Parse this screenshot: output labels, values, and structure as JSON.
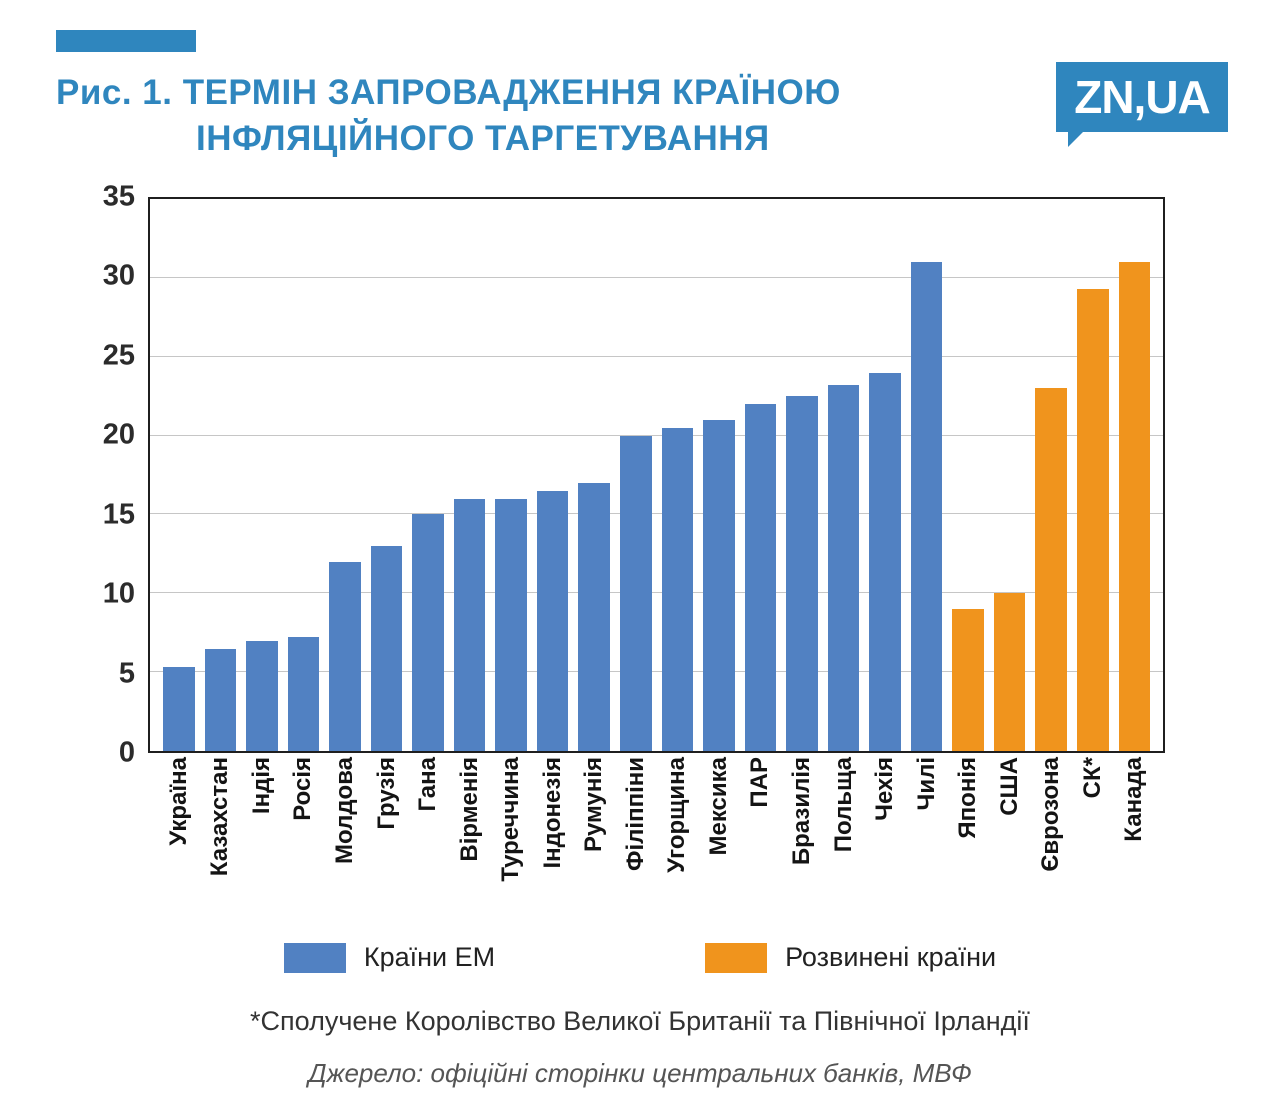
{
  "header": {
    "figure_label": "Рис. 1.",
    "title_line1": "ТЕРМІН ЗАПРОВАДЖЕННЯ КРАЇНОЮ",
    "title_line2": "ІНФЛЯЦІЙНОГО ТАРГЕТУВАННЯ",
    "logo_text": "ZN,UA",
    "accent_color": "#2f86be"
  },
  "chart_data": {
    "type": "bar",
    "title": "Термін запровадження країною інфляційного таргетування",
    "xlabel": "",
    "ylabel": "",
    "ylim": [
      0,
      35
    ],
    "yticks": [
      0,
      5,
      10,
      15,
      20,
      25,
      30,
      35
    ],
    "grid": true,
    "legend_position": "bottom",
    "legend": [
      {
        "label": "Країни ЕМ",
        "color": "#5181c2"
      },
      {
        "label": "Розвинені країни",
        "color": "#f0941d"
      }
    ],
    "points": [
      {
        "label": "Україна",
        "value": 5.3,
        "group": 0
      },
      {
        "label": "Казахстан",
        "value": 6.5,
        "group": 0
      },
      {
        "label": "Індія",
        "value": 7,
        "group": 0
      },
      {
        "label": "Росія",
        "value": 7.2,
        "group": 0
      },
      {
        "label": "Молдова",
        "value": 12,
        "group": 0
      },
      {
        "label": "Грузія",
        "value": 13,
        "group": 0
      },
      {
        "label": "Гана",
        "value": 15,
        "group": 0
      },
      {
        "label": "Вірменія",
        "value": 16,
        "group": 0
      },
      {
        "label": "Туреччина",
        "value": 16,
        "group": 0
      },
      {
        "label": "Індонезія",
        "value": 16.5,
        "group": 0
      },
      {
        "label": "Румунія",
        "value": 17,
        "group": 0
      },
      {
        "label": "Філіппіни",
        "value": 20,
        "group": 0
      },
      {
        "label": "Угорщина",
        "value": 20.5,
        "group": 0
      },
      {
        "label": "Мексика",
        "value": 21,
        "group": 0
      },
      {
        "label": "ПАР",
        "value": 22,
        "group": 0
      },
      {
        "label": "Бразилія",
        "value": 22.5,
        "group": 0
      },
      {
        "label": "Польща",
        "value": 23.2,
        "group": 0
      },
      {
        "label": "Чехія",
        "value": 24,
        "group": 0
      },
      {
        "label": "Чилі",
        "value": 31,
        "group": 0
      },
      {
        "label": "Японія",
        "value": 9,
        "group": 1
      },
      {
        "label": "США",
        "value": 10,
        "group": 1
      },
      {
        "label": "Єврозона",
        "value": 23,
        "group": 1
      },
      {
        "label": "СК*",
        "value": 29.3,
        "group": 1
      },
      {
        "label": "Канада",
        "value": 31,
        "group": 1
      }
    ]
  },
  "footnote": "*Сполучене Королівство Великої Британії та Північної Ірландії",
  "source": "Джерело: офіційні сторінки центральних банків, МВФ"
}
